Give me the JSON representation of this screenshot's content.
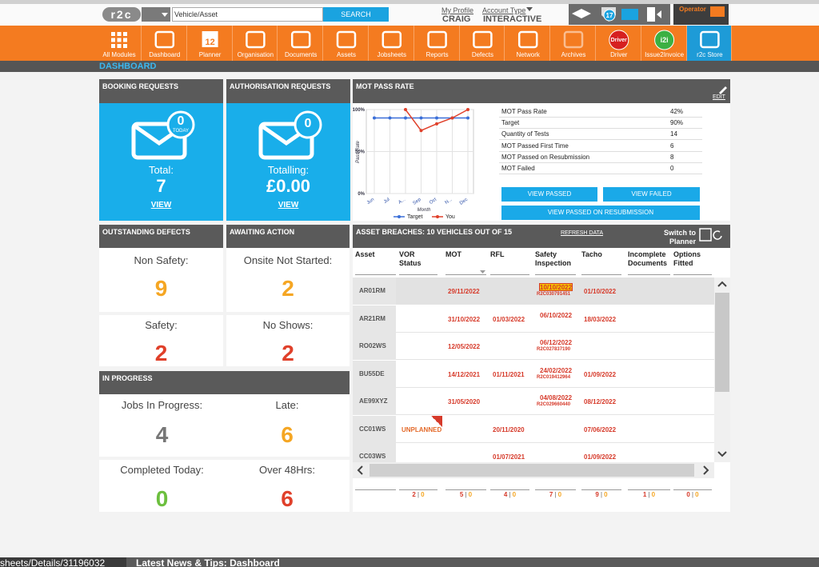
{
  "header": {
    "logo": "r2c",
    "search_placeholder": "Vehicle/Asset",
    "search_button": "SEARCH",
    "profile_link": "My Profile",
    "user": "CRAIG",
    "account_link": "Account Type",
    "account": "INTERACTIVE",
    "badge": "17",
    "operator": "Operator"
  },
  "nav": [
    "All Modules",
    "Dashboard",
    "Planner",
    "Organisation",
    "Documents",
    "Assets",
    "Jobsheets",
    "Reports",
    "Defects",
    "Network",
    "Archives",
    "Driver",
    "Issue2Invoice",
    "r2c Store"
  ],
  "nav_icons": {
    "planner": "12",
    "driver": "Driver",
    "issue2invoice": "i2i"
  },
  "breadcrumb": "DASHBOARD",
  "booking": {
    "title": "BOOKING REQUESTS",
    "badge": "0",
    "badge_sub": "TODAY",
    "label": "Total:",
    "value": "7",
    "link": "VIEW"
  },
  "authorisation": {
    "title": "AUTHORISATION REQUESTS",
    "badge": "0",
    "label": "Totalling:",
    "value": "£0.00",
    "link": "VIEW"
  },
  "mot": {
    "title": "MOT PASS RATE",
    "edit": "EDIT",
    "chart": {
      "type": "line",
      "x_label": "Month",
      "y_label": "Pass Rate",
      "categories": [
        "Jun",
        "Jul",
        "A...",
        "Sep",
        "Oct",
        "N...",
        "Dec"
      ],
      "series": [
        {
          "name": "Target",
          "color": "#3a6fd8",
          "values": [
            90,
            90,
            90,
            90,
            90,
            90,
            90
          ]
        },
        {
          "name": "You",
          "color": "#e0402a",
          "values": [
            null,
            null,
            100,
            75,
            83,
            90,
            100
          ]
        }
      ],
      "ylim": [
        0,
        100
      ],
      "yticks": [
        {
          "value": 0,
          "label": "0%"
        },
        {
          "value": 50,
          "label": "50%"
        },
        {
          "value": 100,
          "label": "100%"
        }
      ],
      "grid": true
    },
    "table": [
      [
        "MOT Pass Rate",
        "42%"
      ],
      [
        "Target",
        "90%"
      ],
      [
        "Quantity of Tests",
        "14"
      ],
      [
        "MOT Passed First Time",
        "6"
      ],
      [
        "MOT Passed on Resubmission",
        "8"
      ],
      [
        "MOT Failed",
        "0"
      ]
    ],
    "buttons": [
      "VIEW PASSED",
      "VIEW FAILED",
      "VIEW PASSED ON RESUBMISSION"
    ]
  },
  "defects": {
    "title": "OUTSTANDING DEFECTS",
    "items": [
      {
        "label": "Non Safety:",
        "value": "9"
      },
      {
        "label": "Safety:",
        "value": "2"
      }
    ]
  },
  "awaiting": {
    "title": "AWAITING ACTION",
    "items": [
      {
        "label": "Onsite Not Started:",
        "value": "2"
      },
      {
        "label": "No Shows:",
        "value": "2"
      }
    ]
  },
  "progress": {
    "title": "IN PROGRESS",
    "items": [
      {
        "label": "Jobs In Progress:",
        "value": "4"
      },
      {
        "label": "Late:",
        "value": "6"
      },
      {
        "label": "Completed Today:",
        "value": "0"
      },
      {
        "label": "Over 48Hrs:",
        "value": "6"
      }
    ]
  },
  "breaches": {
    "title": "ASSET BREACHES: 10 VEHICLES OUT OF 15",
    "refresh": "REFRESH DATA",
    "switch": "Switch to Planner",
    "columns": [
      "Asset",
      "VOR Status",
      "MOT",
      "RFL",
      "Safety Inspection",
      "Tacho",
      "Incomplete Documents",
      "Options Fitted"
    ],
    "rows": [
      [
        "AR01RM",
        null,
        "29/11/2022",
        null,
        {
          "date": "10/10/2022",
          "ref": "R2C030791451"
        },
        "01/10/2022",
        null,
        null
      ],
      [
        "AR21RM",
        null,
        "31/10/2022",
        "01/03/2022",
        {
          "date": "06/10/2022"
        },
        "18/03/2022",
        null,
        null
      ],
      [
        "RO02WS",
        null,
        "12/05/2022",
        null,
        {
          "date": "06/12/2022",
          "ref": "R2C027837190"
        },
        null,
        null,
        null
      ],
      [
        "BU55DE",
        null,
        "14/12/2021",
        "01/11/2021",
        {
          "date": "24/02/2022",
          "ref": "R2C019412964"
        },
        "01/09/2022",
        null,
        null
      ],
      [
        "AE99XYZ",
        null,
        "31/05/2020",
        null,
        {
          "date": "04/08/2022",
          "ref": "R2C029660440"
        },
        "08/12/2022",
        null,
        null
      ],
      [
        "CC01WS",
        "UNPLANNED",
        null,
        "20/11/2020",
        null,
        "07/06/2022",
        null,
        null
      ],
      [
        "CC03WS",
        null,
        null,
        "01/07/2021",
        null,
        "01/09/2022",
        null,
        null
      ]
    ],
    "separator": "|",
    "totals": [
      [
        2,
        0
      ],
      [
        5,
        0
      ],
      [
        4,
        0
      ],
      [
        7,
        0
      ],
      [
        9,
        0
      ],
      [
        1,
        0
      ],
      [
        0,
        0
      ]
    ]
  },
  "footer": {
    "url": "sheets/Details/31196032",
    "news": "Latest News & Tips: Dashboard"
  }
}
